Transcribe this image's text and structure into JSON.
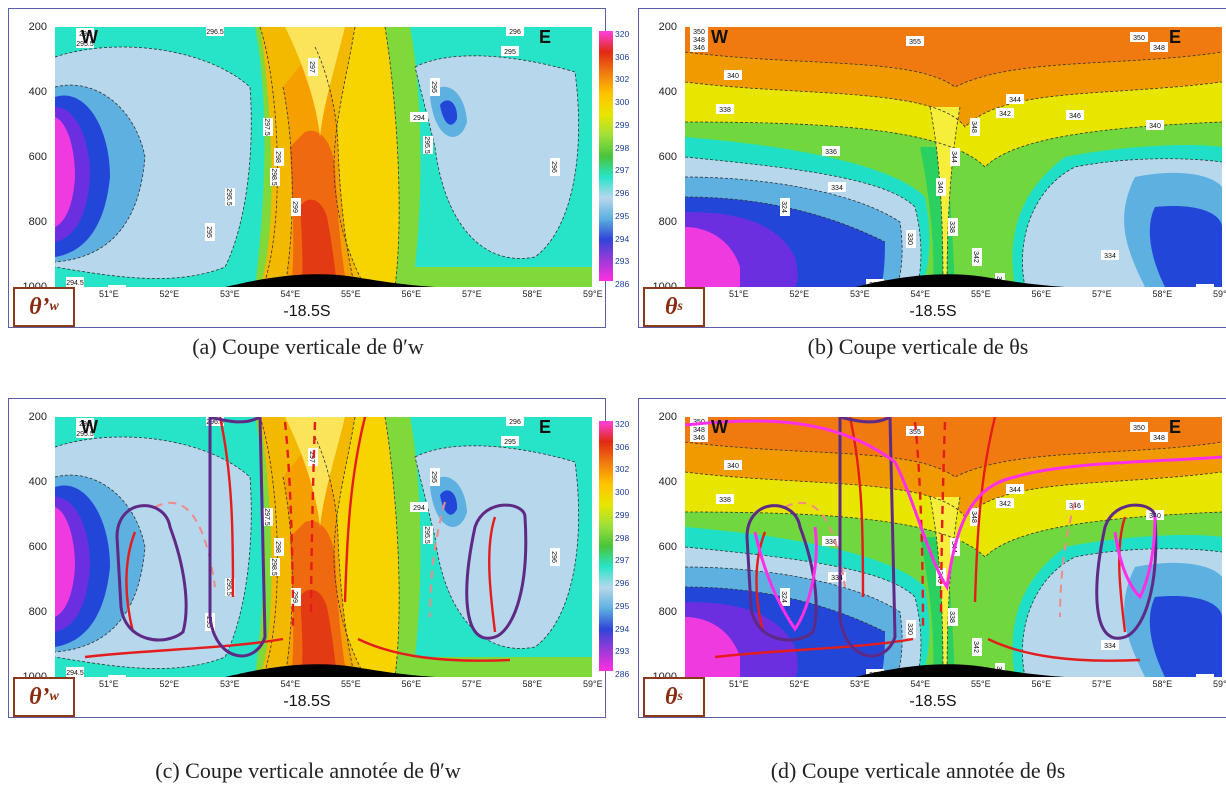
{
  "panels": [
    {
      "id": "a",
      "var_main": "θ’",
      "var_sub": "w",
      "caption": "(a) Coupe verticale de θ′w",
      "annotated": false,
      "cb_ticks": [
        "320",
        "306",
        "302",
        "300",
        "299",
        "298",
        "297",
        "296",
        "295",
        "294",
        "293",
        "286"
      ]
    },
    {
      "id": "b",
      "var_main": "θ",
      "var_sub": "s",
      "caption": "(b) Coupe verticale de θs",
      "annotated": false,
      "cb_ticks": [
        "39",
        "37",
        "36",
        "35",
        "34",
        "33",
        "33",
        "33",
        "32",
        "30"
      ]
    },
    {
      "id": "c",
      "var_main": "θ’",
      "var_sub": "w",
      "caption": "(c) Coupe verticale annotée de θ′w",
      "annotated": true,
      "cb_ticks": [
        "320",
        "306",
        "302",
        "300",
        "299",
        "298",
        "297",
        "296",
        "295",
        "294",
        "293",
        "286"
      ]
    },
    {
      "id": "d",
      "var_main": "θ",
      "var_sub": "s",
      "caption": "(d) Coupe verticale annotée de θs",
      "annotated": true,
      "cb_ticks": [
        "390",
        "370",
        "360",
        "350",
        "340",
        "340",
        "330",
        "330",
        "330",
        "320",
        "300"
      ]
    }
  ],
  "common": {
    "longitude_label": "-18.5S",
    "west": "W",
    "east": "E",
    "y_ticks": [
      "200",
      "400",
      "600",
      "800",
      "1000"
    ],
    "x_ticks": [
      "51°E",
      "52°E",
      "53°E",
      "54°E",
      "55°E",
      "56°E",
      "57°E",
      "58°E",
      "59°E"
    ]
  },
  "chart_data": [
    {
      "type": "heatmap",
      "panel": "a",
      "variable": "θ'w",
      "xlabel": "",
      "ylabel": "",
      "x_ticks": [
        "51°E",
        "52°E",
        "53°E",
        "54°E",
        "55°E",
        "56°E",
        "57°E",
        "58°E",
        "59°E"
      ],
      "y_ticks": [
        200,
        400,
        600,
        800,
        1000
      ],
      "ylim": [
        1000,
        200
      ],
      "xlim": [
        50.4,
        59.3
      ],
      "contour_labels": [
        "296",
        "295.5",
        "296",
        "295",
        "297",
        "297.5",
        "298",
        "298.5",
        "299",
        "294",
        "295",
        "296",
        "294.5",
        "295.5",
        "296",
        "296.5",
        "297",
        "297.5",
        "298",
        "296",
        "295.5"
      ],
      "colorbar": [
        320,
        306,
        302,
        300,
        299,
        298,
        297,
        296,
        295,
        294,
        293,
        286
      ]
    },
    {
      "type": "heatmap",
      "panel": "b",
      "variable": "θs",
      "xlabel": "",
      "ylabel": "",
      "x_ticks": [
        "51°E",
        "52°E",
        "53°E",
        "54°E",
        "55°E",
        "56°E",
        "57°E",
        "58°E",
        "59°E"
      ],
      "ylim": [
        1000,
        200
      ],
      "xlim": [
        50.4,
        59.3
      ],
      "contour_labels": [
        "350",
        "348",
        "346",
        "355",
        "344",
        "342",
        "340",
        "338",
        "336",
        "334",
        "332",
        "330",
        "328",
        "324"
      ],
      "colorbar": [
        39,
        37,
        36,
        35,
        34,
        33,
        33,
        33,
        32,
        30
      ]
    },
    {
      "type": "heatmap",
      "panel": "c",
      "variable": "θ'w annotated",
      "ylim": [
        1000,
        200
      ],
      "xlim": [
        50.4,
        59.3
      ]
    },
    {
      "type": "heatmap",
      "panel": "d",
      "variable": "θs annotated",
      "ylim": [
        1000,
        200
      ],
      "xlim": [
        50.4,
        59.3
      ]
    }
  ]
}
